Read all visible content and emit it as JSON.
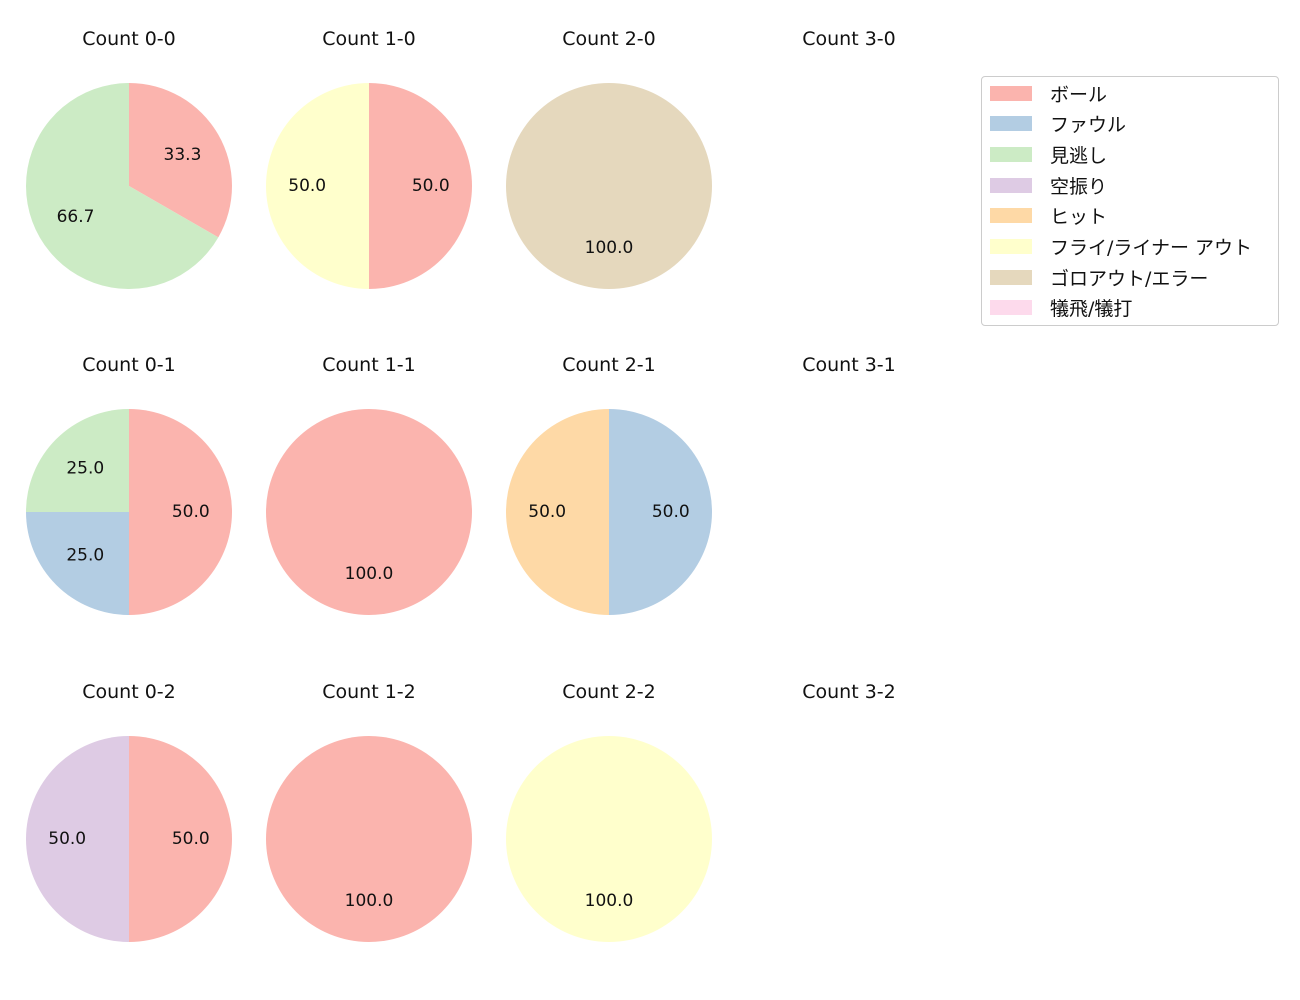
{
  "chart_data": {
    "type": "pie",
    "title": "",
    "legend": {
      "position": "upper right",
      "entries": [
        {
          "label": "ボール",
          "color": "#fbb4ae"
        },
        {
          "label": "ファウル",
          "color": "#b3cde3"
        },
        {
          "label": "見逃し",
          "color": "#ccebc5"
        },
        {
          "label": "空振り",
          "color": "#decbe4"
        },
        {
          "label": "ヒット",
          "color": "#fed9a6"
        },
        {
          "label": "フライ/ライナー アウト",
          "color": "#ffffcc"
        },
        {
          "label": "ゴロアウト/エラー",
          "color": "#e5d8bd"
        },
        {
          "label": "犠飛/犠打",
          "color": "#fddaec"
        }
      ]
    },
    "categories": [
      "ボール",
      "ファウル",
      "見逃し",
      "空振り",
      "ヒット",
      "フライ/ライナー アウト",
      "ゴロアウト/エラー",
      "犠飛/犠打"
    ],
    "subplots": [
      {
        "title": "Count 0-0",
        "row": 0,
        "col": 0,
        "values": [
          33.3,
          0,
          66.7,
          0,
          0,
          0,
          0,
          0
        ]
      },
      {
        "title": "Count 1-0",
        "row": 0,
        "col": 1,
        "values": [
          50.0,
          0,
          0,
          0,
          0,
          50.0,
          0,
          0
        ]
      },
      {
        "title": "Count 2-0",
        "row": 0,
        "col": 2,
        "values": [
          0,
          0,
          0,
          0,
          0,
          0,
          100.0,
          0
        ]
      },
      {
        "title": "Count 3-0",
        "row": 0,
        "col": 3,
        "values": []
      },
      {
        "title": "Count 0-1",
        "row": 1,
        "col": 0,
        "values": [
          50.0,
          25.0,
          25.0,
          0,
          0,
          0,
          0,
          0
        ]
      },
      {
        "title": "Count 1-1",
        "row": 1,
        "col": 1,
        "values": [
          100.0,
          0,
          0,
          0,
          0,
          0,
          0,
          0
        ]
      },
      {
        "title": "Count 2-1",
        "row": 1,
        "col": 2,
        "values": [
          0,
          50.0,
          0,
          0,
          50.0,
          0,
          0,
          0
        ]
      },
      {
        "title": "Count 3-1",
        "row": 1,
        "col": 3,
        "values": []
      },
      {
        "title": "Count 0-2",
        "row": 2,
        "col": 0,
        "values": [
          50.0,
          0,
          0,
          50.0,
          0,
          0,
          0,
          0
        ]
      },
      {
        "title": "Count 1-2",
        "row": 2,
        "col": 1,
        "values": [
          100.0,
          0,
          0,
          0,
          0,
          0,
          0,
          0
        ]
      },
      {
        "title": "Count 2-2",
        "row": 2,
        "col": 2,
        "values": [
          0,
          0,
          0,
          0,
          0,
          100.0,
          0,
          0
        ]
      },
      {
        "title": "Count 3-2",
        "row": 2,
        "col": 3,
        "values": []
      }
    ],
    "label_format": "%.1f",
    "start_angle": 90,
    "direction": "clockwise"
  }
}
